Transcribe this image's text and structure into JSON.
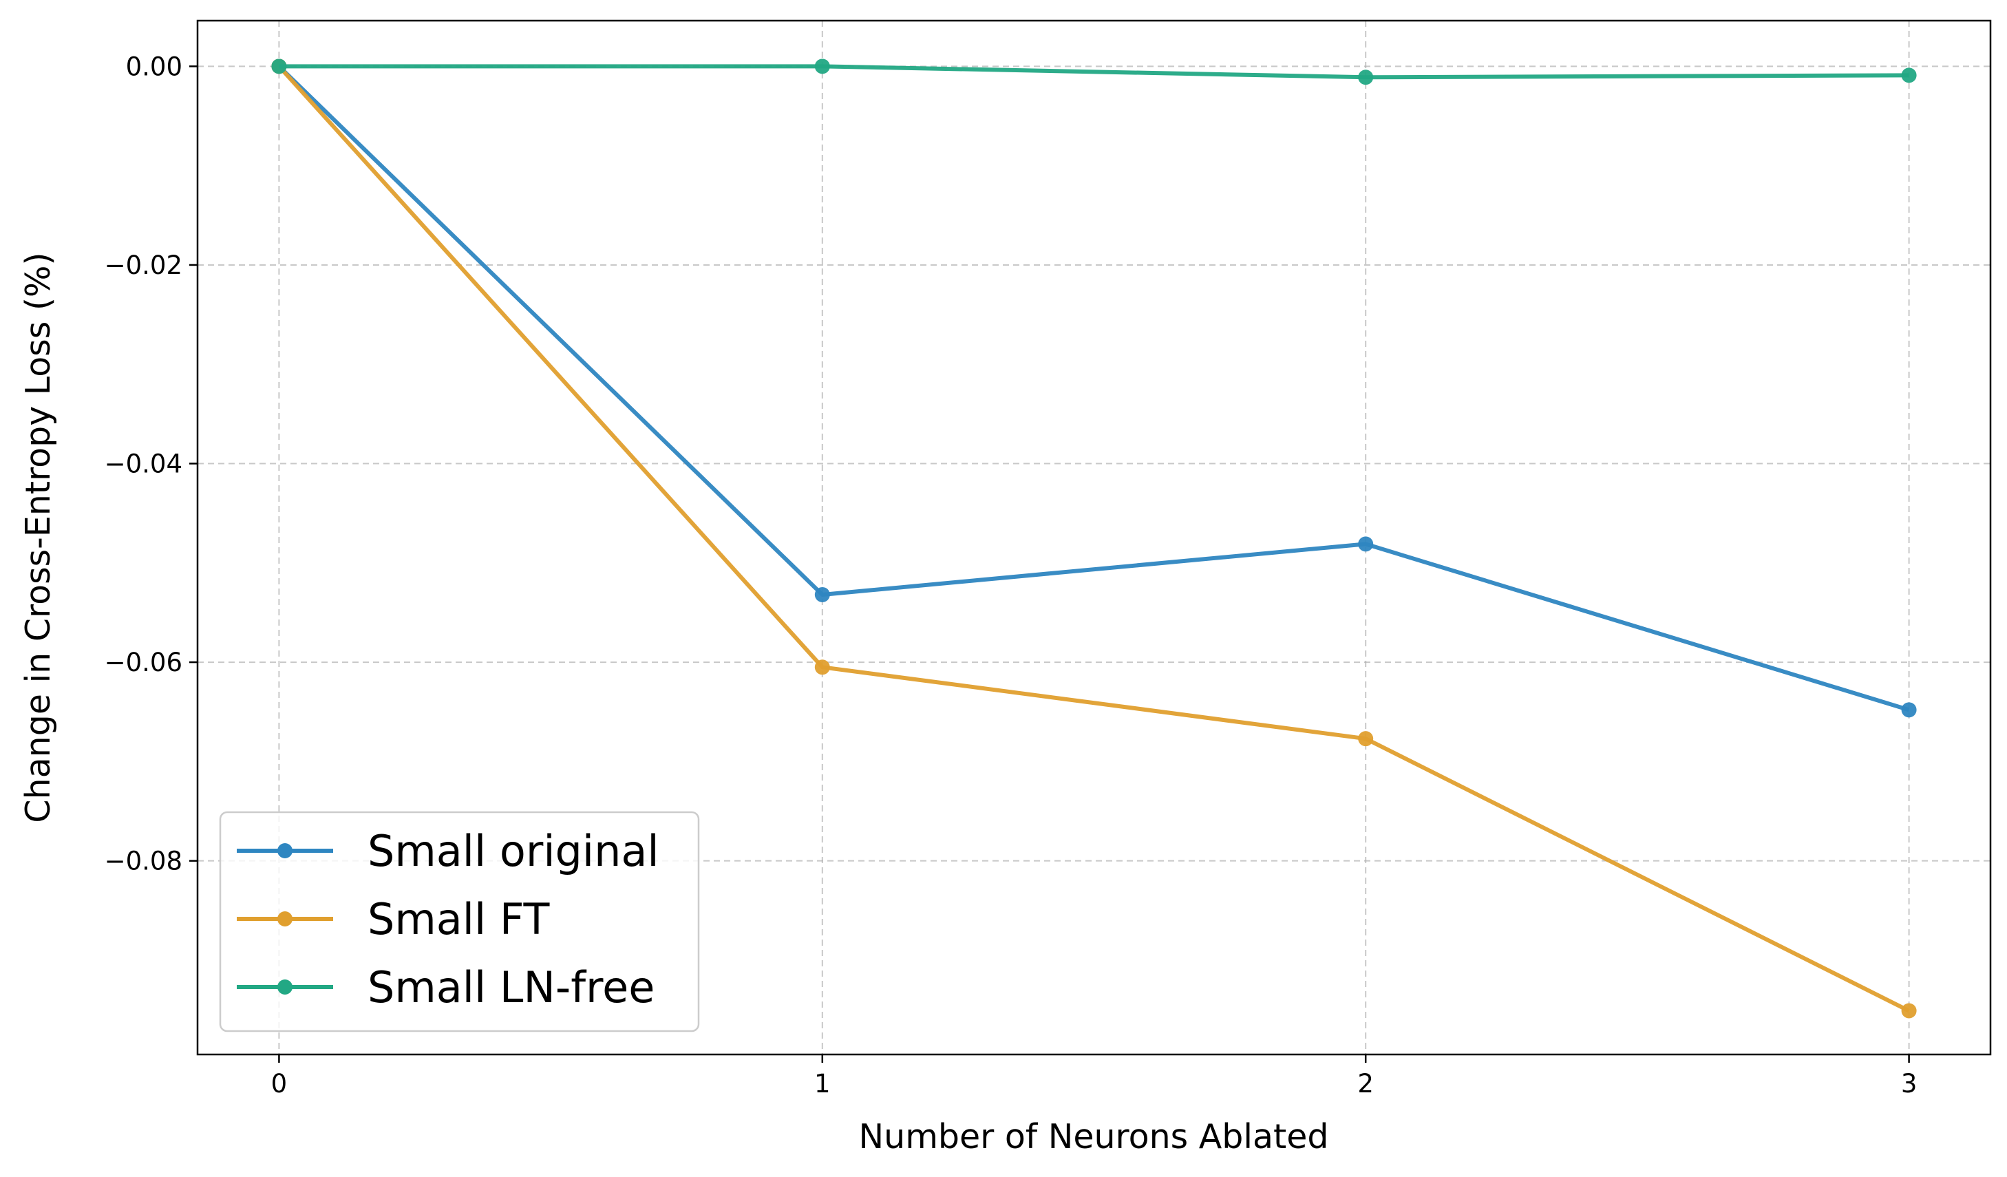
{
  "chart_data": {
    "type": "line",
    "title": "",
    "xlabel": "Number of Neurons Ablated",
    "ylabel": "Change in Cross-Entropy Loss (%)",
    "x": [
      0,
      1,
      2,
      3
    ],
    "x_tick_labels": [
      "0",
      "1",
      "2",
      "3"
    ],
    "y_ticks": [
      0.0,
      -0.02,
      -0.04,
      -0.06,
      -0.08
    ],
    "y_tick_labels": [
      "0.00",
      "−0.02",
      "−0.04",
      "−0.06",
      "−0.08"
    ],
    "xlim": [
      -0.15,
      3.15
    ],
    "ylim": [
      -0.0995,
      0.0046
    ],
    "grid": true,
    "grid_style": "dashed",
    "legend_position": "lower-left",
    "series": [
      {
        "name": "Small original",
        "color": "#2E86C1",
        "values": [
          0.0,
          -0.0532,
          -0.0481,
          -0.0648
        ]
      },
      {
        "name": "Small FT",
        "color": "#E09F2E",
        "values": [
          0.0,
          -0.0605,
          -0.0677,
          -0.0951
        ]
      },
      {
        "name": "Small LN-free",
        "color": "#22A884",
        "values": [
          0.0,
          0.0,
          -0.0011,
          -0.0009
        ]
      }
    ]
  }
}
